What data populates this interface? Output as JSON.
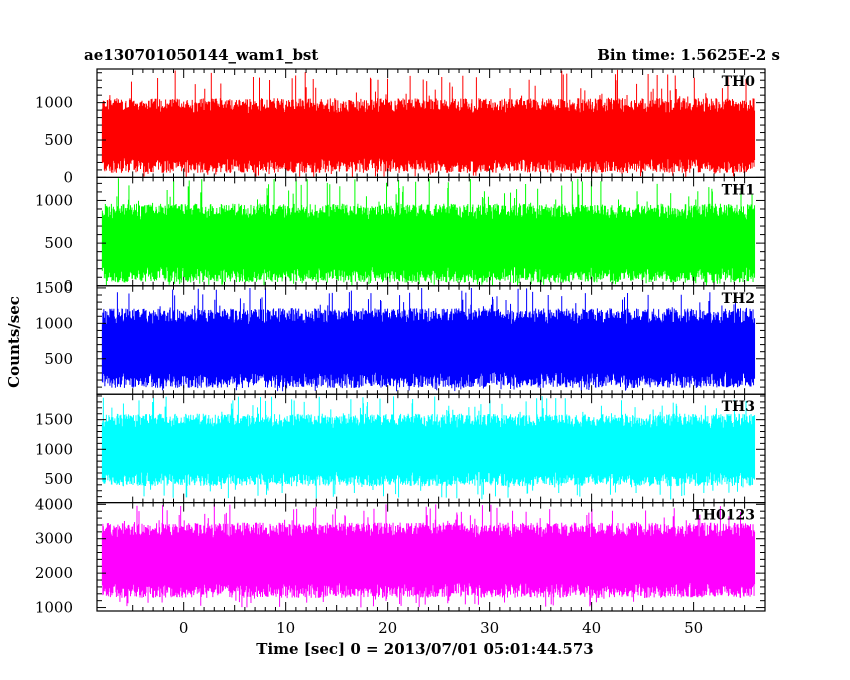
{
  "chart_data": {
    "type": "line",
    "title": "ae130701050144_wam1_bst",
    "subtitle": "Bin time: 1.5625E-2 s",
    "xlabel": "Time [sec] 0 = 2013/07/01 05:01:44.573",
    "ylabel": "Counts/sec",
    "xlim": [
      -8.5,
      57
    ],
    "x_ticks": [
      0,
      10,
      20,
      30,
      40,
      50
    ],
    "x_data_range": [
      -8,
      56
    ],
    "panels": [
      {
        "name": "TH0",
        "color": "#ff0000",
        "ylim": [
          0,
          1450
        ],
        "y_ticks": [
          0,
          500,
          1000
        ],
        "y_tick_labels": [
          "0",
          "500",
          "1000"
        ],
        "typical_range": [
          160,
          960
        ],
        "min_seen": 0,
        "max_seen": 1450
      },
      {
        "name": "TH1",
        "color": "#00ff00",
        "ylim": [
          0,
          1270
        ],
        "y_ticks": [
          0,
          500,
          1000
        ],
        "y_tick_labels": [
          "0",
          "500",
          "1000"
        ],
        "typical_range": [
          130,
          870
        ],
        "min_seen": 0,
        "max_seen": 1260
      },
      {
        "name": "TH2",
        "color": "#0000ff",
        "ylim": [
          0,
          1530
        ],
        "y_ticks": [
          500,
          1000,
          1500
        ],
        "y_tick_labels": [
          "500",
          "1000",
          "1500"
        ],
        "typical_range": [
          200,
          1100
        ],
        "min_seen": 40,
        "max_seen": 1500
      },
      {
        "name": "TH3",
        "color": "#00ffff",
        "ylim": [
          100,
          1930
        ],
        "y_ticks": [
          500,
          1000,
          1500
        ],
        "y_tick_labels": [
          "500",
          "1000",
          "1500"
        ],
        "typical_range": [
          500,
          1480
        ],
        "min_seen": 150,
        "max_seen": 1900
      },
      {
        "name": "TH0123",
        "color": "#ff00ff",
        "ylim": [
          900,
          4050
        ],
        "y_ticks": [
          1000,
          2000,
          3000,
          4000
        ],
        "y_tick_labels": [
          "1000",
          "2000",
          "3000",
          "4000"
        ],
        "typical_range": [
          1500,
          3250
        ],
        "min_seen": 1000,
        "max_seen": 4000
      }
    ]
  }
}
